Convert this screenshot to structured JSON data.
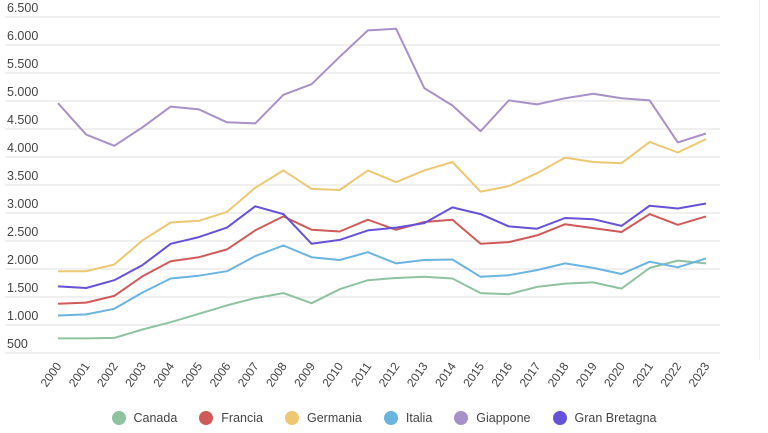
{
  "chart_data": {
    "type": "line",
    "title": "",
    "xlabel": "",
    "ylabel": "",
    "ylim": [
      500,
      6500
    ],
    "yticks": [
      "6.500",
      "6.000",
      "5.500",
      "5.000",
      "4.500",
      "4.000",
      "3.500",
      "3.000",
      "2.500",
      "2.000",
      "1.500",
      "1.000",
      "500"
    ],
    "ytick_values": [
      6500,
      6000,
      5500,
      5000,
      4500,
      4000,
      3500,
      3000,
      2500,
      2000,
      1500,
      1000,
      500
    ],
    "grid": true,
    "legend_position": "bottom",
    "x": [
      "2000",
      "2001",
      "2002",
      "2003",
      "2004",
      "2005",
      "2006",
      "2007",
      "2008",
      "2009",
      "2010",
      "2011",
      "2012",
      "2013",
      "2014",
      "2015",
      "2016",
      "2017",
      "2018",
      "2019",
      "2020",
      "2021",
      "2022",
      "2023"
    ],
    "series": [
      {
        "name": "Canada",
        "color": "#8fc2a0",
        "values": [
          760,
          760,
          770,
          920,
          1050,
          1200,
          1350,
          1480,
          1570,
          1390,
          1640,
          1800,
          1840,
          1860,
          1830,
          1570,
          1550,
          1680,
          1740,
          1760,
          1650,
          2020,
          2150,
          2100
        ]
      },
      {
        "name": "Francia",
        "color": "#d05a5a",
        "values": [
          1380,
          1400,
          1520,
          1870,
          2140,
          2210,
          2350,
          2690,
          2940,
          2700,
          2670,
          2880,
          2700,
          2840,
          2880,
          2450,
          2480,
          2600,
          2800,
          2730,
          2660,
          2980,
          2790,
          2940
        ]
      },
      {
        "name": "Germania",
        "color": "#ecc872",
        "values": [
          1960,
          1960,
          2080,
          2510,
          2830,
          2860,
          3020,
          3450,
          3760,
          3430,
          3410,
          3760,
          3550,
          3760,
          3910,
          3380,
          3480,
          3710,
          3990,
          3910,
          3890,
          4270,
          4080,
          4320
        ]
      },
      {
        "name": "Italia",
        "color": "#6ab4e0",
        "values": [
          1170,
          1190,
          1290,
          1580,
          1830,
          1880,
          1960,
          2230,
          2420,
          2210,
          2160,
          2300,
          2100,
          2160,
          2170,
          1860,
          1890,
          1980,
          2100,
          2020,
          1910,
          2130,
          2030,
          2190
        ]
      },
      {
        "name": "Giappone",
        "color": "#a890c8",
        "values": [
          4960,
          4400,
          4200,
          4530,
          4900,
          4850,
          4620,
          4600,
          5110,
          5300,
          5790,
          6260,
          6290,
          5230,
          4920,
          4460,
          5010,
          4940,
          5050,
          5130,
          5050,
          5010,
          4260,
          4420
        ]
      },
      {
        "name": "Gran Bretagna",
        "color": "#6652d8",
        "values": [
          1690,
          1660,
          1800,
          2070,
          2450,
          2570,
          2740,
          3120,
          2980,
          2450,
          2520,
          2690,
          2740,
          2820,
          3100,
          2980,
          2760,
          2720,
          2910,
          2890,
          2770,
          3130,
          3080,
          3170
        ]
      }
    ]
  }
}
